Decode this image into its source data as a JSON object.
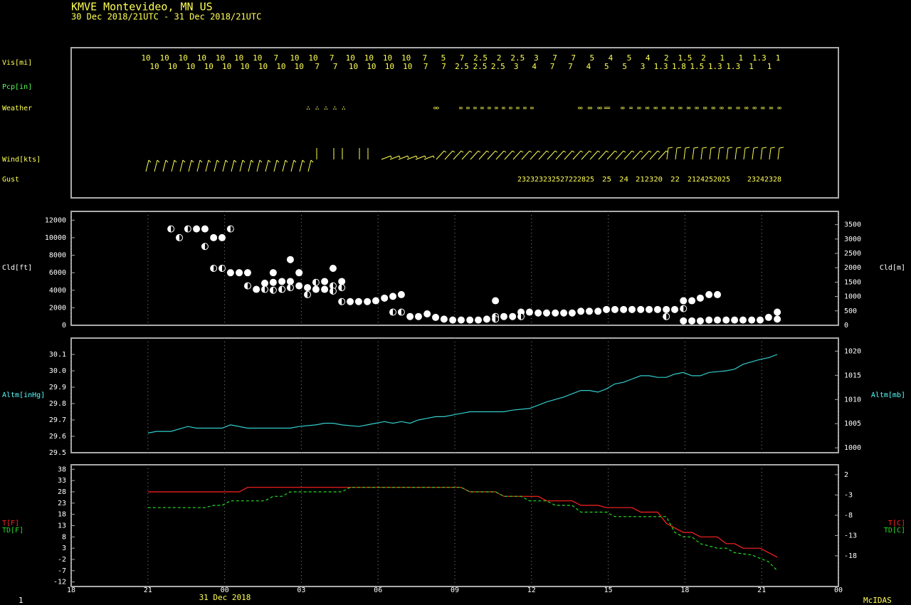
{
  "header": {
    "station": "KMVE  Montevideo, MN US",
    "period": "30 Dec 2018/21UTC - 31 Dec 2018/21UTC"
  },
  "obs_panel": {
    "labels": {
      "vis": "Vis[mi]",
      "pcp": "Pcp[in]",
      "weather": "Weather",
      "wind": "Wind[kts]",
      "gust": "Gust"
    },
    "vis_upper": [
      10,
      10,
      10,
      10,
      10,
      10,
      10,
      7,
      10,
      10,
      7,
      10,
      10,
      10,
      10,
      7,
      5,
      7,
      2.5,
      2,
      2.5,
      3,
      7,
      7,
      5,
      4,
      5,
      4,
      2,
      1.5,
      2,
      1,
      1,
      1.3,
      1
    ],
    "vis_lower": [
      10,
      10,
      10,
      10,
      10,
      10,
      10,
      10,
      10,
      7,
      7,
      10,
      10,
      10,
      10,
      7,
      7,
      2.5,
      2.5,
      2.5,
      3,
      4,
      7,
      7,
      4,
      5,
      5,
      3,
      1.3,
      1.8,
      1.5,
      1.3,
      1.3,
      1,
      1
    ],
    "weather": [
      "∴ ∴ ∴ ∴ ∴",
      "∞",
      "∞ ∞ ∞ ∞ ∞ ∞ ∞ ∞ ∞ ∞ ∞",
      "∞ ∞ ∞",
      "=",
      "∞ = ∞ ∞ ∞ ∞ ∞ ∞ ∞ ∞ ∞ ∞ ∞ ∞ ∞ ∞ ∞ ∞ ∞ ∞"
    ],
    "gust": [
      "232323232527222825",
      "25",
      "24",
      "212320",
      "22",
      "2124252025",
      "23242328"
    ]
  },
  "chart_data": [
    {
      "type": "scatter",
      "y_label": "Cld[ft]",
      "y2_label": "Cld[m]",
      "label_color": "#ffffff",
      "xlim": [
        0,
        30
      ],
      "xticks": [
        0,
        3,
        6,
        9,
        12,
        15,
        18,
        21,
        24,
        27,
        30
      ],
      "ylim": [
        0,
        13000
      ],
      "yticks": [
        0,
        2000,
        4000,
        6000,
        8000,
        10000,
        12000
      ],
      "y2lim": [
        0,
        3962
      ],
      "y2ticks": [
        0,
        500,
        1000,
        1500,
        2000,
        2500,
        3000,
        3500
      ],
      "grid": true,
      "series": [
        {
          "marker": "full",
          "color": "#ffffff",
          "x": [
            4.9,
            5.23,
            5.57,
            5.9,
            6.23,
            6.57,
            6.9,
            7.24,
            7.57,
            7.9,
            7.9,
            8.24,
            8.57,
            8.57,
            8.91,
            8.91,
            9.24,
            9.57,
            9.91,
            9.91,
            10.24,
            10.58,
            10.91,
            11.24,
            11.58,
            11.91,
            12.25,
            12.58,
            12.91,
            13.25,
            13.58,
            13.92,
            14.25,
            14.58,
            14.92,
            15.25,
            15.59,
            15.92,
            16.25,
            16.59,
            16.92,
            17.26,
            17.59,
            17.92,
            18.26,
            18.59,
            18.93,
            19.26,
            19.59,
            19.93,
            20.26,
            20.6,
            20.93,
            21.26,
            21.6,
            21.93,
            22.27,
            22.6,
            22.93,
            23.27,
            23.6,
            23.94,
            23.94,
            24.27,
            24.27,
            24.6,
            24.6,
            24.94,
            24.94,
            25.27,
            25.27,
            25.61,
            25.94,
            26.27,
            26.61,
            26.94,
            27.27,
            27.61,
            27.61
          ],
          "values": [
            11000,
            11000,
            10000,
            10000,
            6000,
            6000,
            6000,
            4100,
            4800,
            6000,
            4900,
            5000,
            5000,
            7500,
            6000,
            4500,
            4300,
            4100,
            5000,
            4100,
            6500,
            5000,
            2700,
            2700,
            2700,
            2800,
            3100,
            3300,
            3500,
            1000,
            1000,
            1300,
            900,
            700,
            600,
            600,
            600,
            600,
            700,
            2800,
            1000,
            1000,
            1500,
            1500,
            1400,
            1400,
            1400,
            1400,
            1400,
            1600,
            1600,
            1600,
            1800,
            1800,
            1800,
            1800,
            1800,
            1800,
            1800,
            1800,
            1800,
            2800,
            500,
            2800,
            500,
            3100,
            500,
            3500,
            600,
            3500,
            600,
            600,
            600,
            600,
            600,
            600,
            900,
            1500,
            700
          ]
        },
        {
          "marker": "half",
          "color": "#ffffff",
          "x": [
            3.9,
            4.23,
            4.56,
            5.23,
            5.57,
            5.9,
            6.23,
            6.9,
            7.57,
            7.9,
            8.24,
            8.57,
            9.24,
            9.57,
            10.24,
            10.24,
            10.58,
            10.58,
            12.58,
            12.91,
            16.59,
            16.59,
            17.59,
            23.27,
            23.94
          ],
          "values": [
            11000,
            10000,
            11000,
            9000,
            6500,
            6500,
            11000,
            4500,
            4100,
            4000,
            4100,
            4300,
            3500,
            4900,
            4500,
            3900,
            4300,
            2700,
            1500,
            1500,
            1000,
            700,
            1000,
            1000,
            1900
          ]
        }
      ]
    },
    {
      "type": "line",
      "y_label": "Altm[inHg]",
      "y2_label": "Altm[mb]",
      "label_color": "#55ffff",
      "xlim": [
        0,
        30
      ],
      "xticks": [
        0,
        3,
        6,
        9,
        12,
        15,
        18,
        21,
        24,
        27,
        30
      ],
      "ylim": [
        29.5,
        30.2
      ],
      "yticks": [
        29.5,
        29.6,
        29.7,
        29.8,
        29.9,
        {
          "value": 30,
          "label": "30.0"
        },
        30.1
      ],
      "y2lim": [
        999,
        1022.7
      ],
      "y2ticks": [
        1000,
        1005,
        1010,
        1015,
        1020
      ],
      "grid": true,
      "series": [
        {
          "color": "#33cccc",
          "x": [
            3,
            3.34,
            3.9,
            4.56,
            4.9,
            5.9,
            6.23,
            6.9,
            8.57,
            8.91,
            9.57,
            9.91,
            10.24,
            10.58,
            11.24,
            11.58,
            11.91,
            12.25,
            12.58,
            12.91,
            13.25,
            13.58,
            13.92,
            14.25,
            14.58,
            15.25,
            15.59,
            16.92,
            17.26,
            17.92,
            18.59,
            19.26,
            19.59,
            19.93,
            20.26,
            20.6,
            20.93,
            21.26,
            21.6,
            21.93,
            22.27,
            22.6,
            22.93,
            23.27,
            23.6,
            23.94,
            24.27,
            24.6,
            24.94,
            25.61,
            25.94,
            26.27,
            26.94,
            27.27,
            27.61
          ],
          "values": [
            29.62,
            29.63,
            29.63,
            29.66,
            29.65,
            29.65,
            29.67,
            29.65,
            29.65,
            29.66,
            29.67,
            29.68,
            29.68,
            29.67,
            29.66,
            29.67,
            29.68,
            29.69,
            29.68,
            29.69,
            29.68,
            29.7,
            29.71,
            29.72,
            29.72,
            29.74,
            29.75,
            29.75,
            29.76,
            29.77,
            29.81,
            29.84,
            29.86,
            29.88,
            29.88,
            29.87,
            29.89,
            29.92,
            29.93,
            29.95,
            29.97,
            29.97,
            29.96,
            29.96,
            29.98,
            29.99,
            29.97,
            29.97,
            29.99,
            30.0,
            30.01,
            30.04,
            30.07,
            30.08,
            30.1
          ]
        }
      ]
    },
    {
      "type": "line",
      "xlim": [
        0,
        30
      ],
      "xticks": [
        {
          "value": 0,
          "label": "18"
        },
        {
          "value": 3,
          "label": "21"
        },
        {
          "value": 6,
          "label": "00"
        },
        {
          "value": 9,
          "label": "03"
        },
        {
          "value": 12,
          "label": "06"
        },
        {
          "value": 15,
          "label": "09"
        },
        {
          "value": 18,
          "label": "12"
        },
        {
          "value": 21,
          "label": "15"
        },
        {
          "value": 24,
          "label": "18"
        },
        {
          "value": 27,
          "label": "21"
        },
        {
          "value": 30,
          "label": "00"
        }
      ],
      "date_label": "31 Dec 2018",
      "ylim": [
        -14,
        40
      ],
      "yticks": [
        -12,
        -7,
        -2,
        3,
        8,
        13,
        18,
        23,
        28,
        33,
        38
      ],
      "y2lim": [
        -25.56,
        4.44
      ],
      "y2ticks": [
        2,
        -3,
        -8,
        -13,
        -18
      ],
      "grid": true,
      "series": [
        {
          "name": "T[F]",
          "name_c": "T[C]",
          "color": "#ff2222",
          "dashed": false,
          "x": [
            3,
            6.57,
            6.9,
            15.25,
            15.59,
            16.59,
            16.92,
            18.26,
            18.59,
            19.59,
            19.93,
            20.6,
            20.93,
            21.93,
            22.27,
            22.93,
            23.27,
            23.6,
            23.94,
            24.27,
            24.6,
            25.27,
            25.61,
            25.94,
            26.27,
            26.94,
            27.61
          ],
          "values": [
            28,
            28,
            30,
            30,
            28,
            28,
            26,
            26,
            24,
            24,
            22,
            22,
            21,
            21,
            19,
            19,
            14,
            12,
            10,
            10,
            8,
            8,
            5,
            5,
            3,
            3,
            -1
          ]
        },
        {
          "name": "TD[F]",
          "name_c": "TD[C]",
          "color": "#22dd22",
          "dashed": true,
          "x": [
            3,
            5.23,
            5.57,
            5.9,
            6.23,
            7.57,
            7.9,
            8.24,
            8.57,
            10.58,
            10.91,
            15.25,
            15.59,
            16.59,
            16.92,
            17.59,
            17.92,
            18.59,
            18.93,
            19.59,
            19.93,
            20.93,
            21.26,
            23.27,
            23.6,
            23.94,
            24.27,
            24.6,
            25.27,
            25.61,
            25.94,
            26.61,
            27.27,
            27.61
          ],
          "values": [
            21,
            21,
            22,
            22,
            24,
            24,
            26,
            26,
            28,
            28,
            30,
            30,
            28,
            28,
            26,
            26,
            24,
            24,
            22,
            22,
            19,
            19,
            17,
            17,
            10,
            8,
            8,
            5,
            3,
            3,
            1,
            0,
            -3,
            -7
          ]
        }
      ]
    }
  ],
  "footer": {
    "page": "1",
    "brand": "McIDAS"
  }
}
